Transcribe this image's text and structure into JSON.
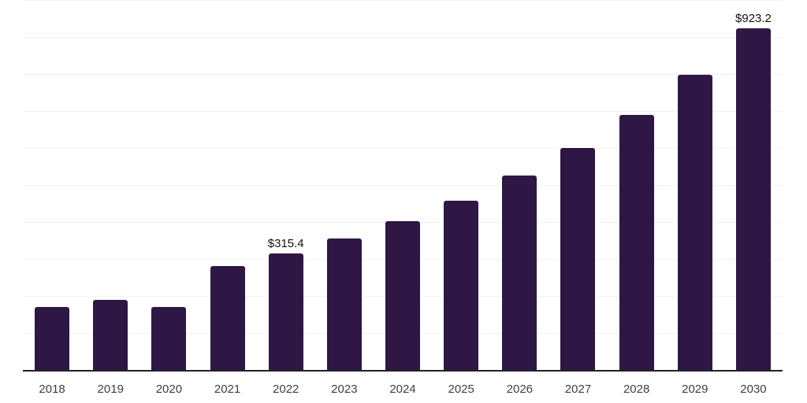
{
  "chart_data": {
    "type": "bar",
    "title": "",
    "xlabel": "",
    "ylabel": "",
    "categories": [
      "2018",
      "2019",
      "2020",
      "2021",
      "2022",
      "2023",
      "2024",
      "2025",
      "2026",
      "2027",
      "2028",
      "2029",
      "2030"
    ],
    "values": [
      171,
      190,
      171,
      280,
      315.4,
      356,
      403,
      458,
      526,
      600,
      690,
      797,
      923.2
    ],
    "data_labels": {
      "2022": "$315.4",
      "2030": "$923.2"
    },
    "ylim": [
      0,
      1000
    ],
    "grid_interval": 100,
    "grid": true,
    "legend": false,
    "y_axis_labels_visible": false,
    "bar_color": "#2e1745",
    "grid_color": "#f1f1f1",
    "axis_color": "#222222",
    "tick_label_color": "#404040",
    "data_label_color": "#111111",
    "background_color": "#ffffff"
  }
}
